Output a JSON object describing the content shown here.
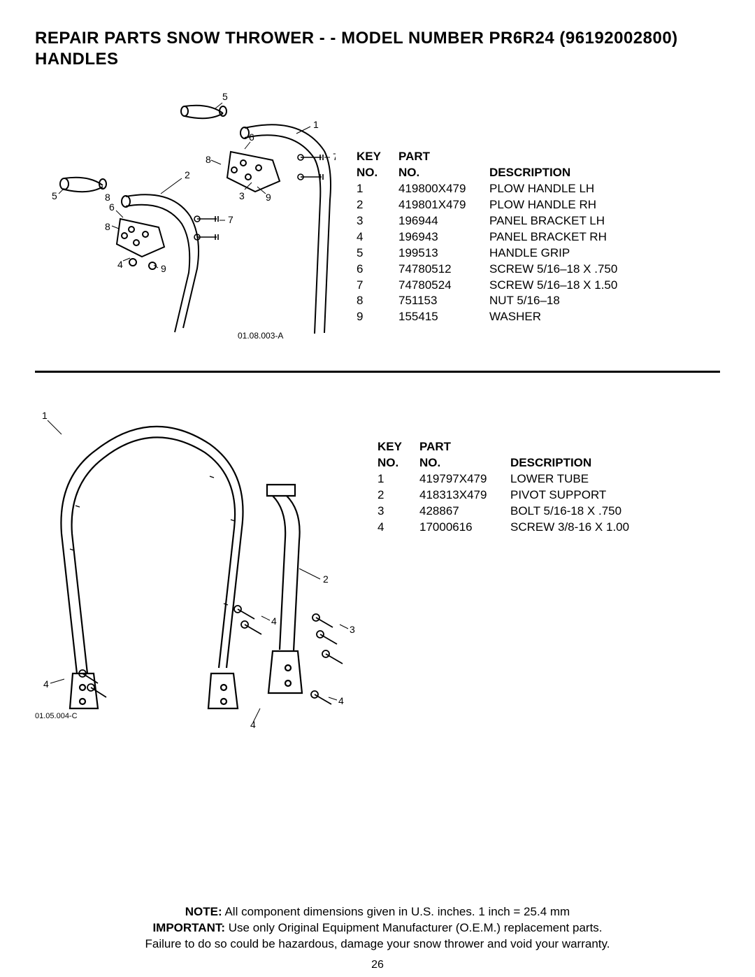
{
  "title_line1": "REPAIR PARTS  SNOW THROWER - - MODEL NUMBER  PR6R24 (96192002800)",
  "title_line2": "HANDLES",
  "table_header": {
    "key_top": "KEY",
    "key_bot": "NO.",
    "part_top": "PART",
    "part_bot": "NO.",
    "desc": "DESCRIPTION"
  },
  "upper_diagram_id": "01.08.003-A",
  "upper_callouts": [
    "1",
    "2",
    "3",
    "4",
    "5",
    "6",
    "7",
    "8",
    "9"
  ],
  "upper_parts": [
    {
      "key": "1",
      "part": "419800X479",
      "desc": "PLOW HANDLE LH"
    },
    {
      "key": "2",
      "part": "419801X479",
      "desc": "PLOW HANDLE RH"
    },
    {
      "key": "3",
      "part": "196944",
      "desc": "PANEL BRACKET LH"
    },
    {
      "key": "4",
      "part": "196943",
      "desc": "PANEL BRACKET RH"
    },
    {
      "key": "5",
      "part": "199513",
      "desc": "HANDLE GRIP"
    },
    {
      "key": "6",
      "part": "74780512",
      "desc": "SCREW 5/16–18 X .750"
    },
    {
      "key": "7",
      "part": "74780524",
      "desc": "SCREW 5/16–18 X 1.50"
    },
    {
      "key": "8",
      "part": "751153",
      "desc": "NUT 5/16–18"
    },
    {
      "key": "9",
      "part": "155415",
      "desc": "WASHER"
    }
  ],
  "lower_diagram_id": "01.05.004-C",
  "lower_callouts": [
    "1",
    "2",
    "3",
    "4"
  ],
  "lower_parts": [
    {
      "key": "1",
      "part": "419797X479",
      "desc": "LOWER TUBE"
    },
    {
      "key": "2",
      "part": "418313X479",
      "desc": "PIVOT SUPPORT"
    },
    {
      "key": "3",
      "part": "428867",
      "desc": "BOLT 5/16-18 X .750"
    },
    {
      "key": "4",
      "part": "17000616",
      "desc": "SCREW 3/8-16 X 1.00"
    }
  ],
  "note_line": "NOTE:  All component dimensions given in U.S. inches.    1 inch = 25.4 mm",
  "note_bold": "NOTE:",
  "important_line": "IMPORTANT: Use only Original Equipment Manufacturer (O.E.M.) replacement parts.",
  "important_bold": "IMPORTANT:",
  "warranty_line": "Failure to do so could be hazardous, damage your snow thrower and void your warranty.",
  "page_number": "26",
  "style": {
    "stroke": "#000000",
    "stroke_width_thin": 1.2,
    "stroke_width_thick": 2.2,
    "fill_white": "#ffffff"
  }
}
